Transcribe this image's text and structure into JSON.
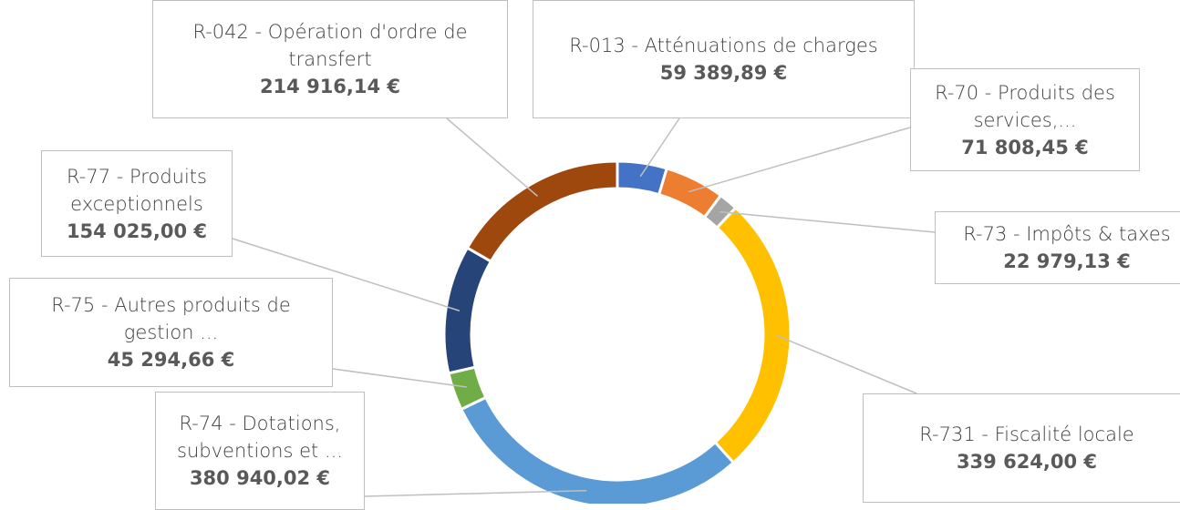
{
  "chart_data": {
    "type": "pie",
    "donut": true,
    "categories": [
      "R-013 - Atténuations de charges",
      "R-70 - Produits des services,...",
      "R-73 - Impôts & taxes",
      "R-731 - Fiscalité locale",
      "R-74 - Dotations, subventions et ...",
      "R-75 - Autres produits de gestion ...",
      "R-77 - Produits exceptionnels",
      "R-042 - Opération d'ordre de transfert"
    ],
    "values": [
      59389.89,
      71808.45,
      22979.13,
      339624.0,
      380940.02,
      45294.66,
      154025.0,
      214916.14
    ],
    "value_labels": [
      "59 389,89 €",
      "71 808,45 €",
      "22 979,13 €",
      "339 624,00 €",
      "380 940,02 €",
      "45 294,66 €",
      "154 025,00 €",
      "214 916,14 €"
    ],
    "colors": [
      "#4472c4",
      "#ed7d31",
      "#a5a5a5",
      "#ffc000",
      "#5b9bd5",
      "#70ad47",
      "#264478",
      "#9e480e"
    ]
  }
}
